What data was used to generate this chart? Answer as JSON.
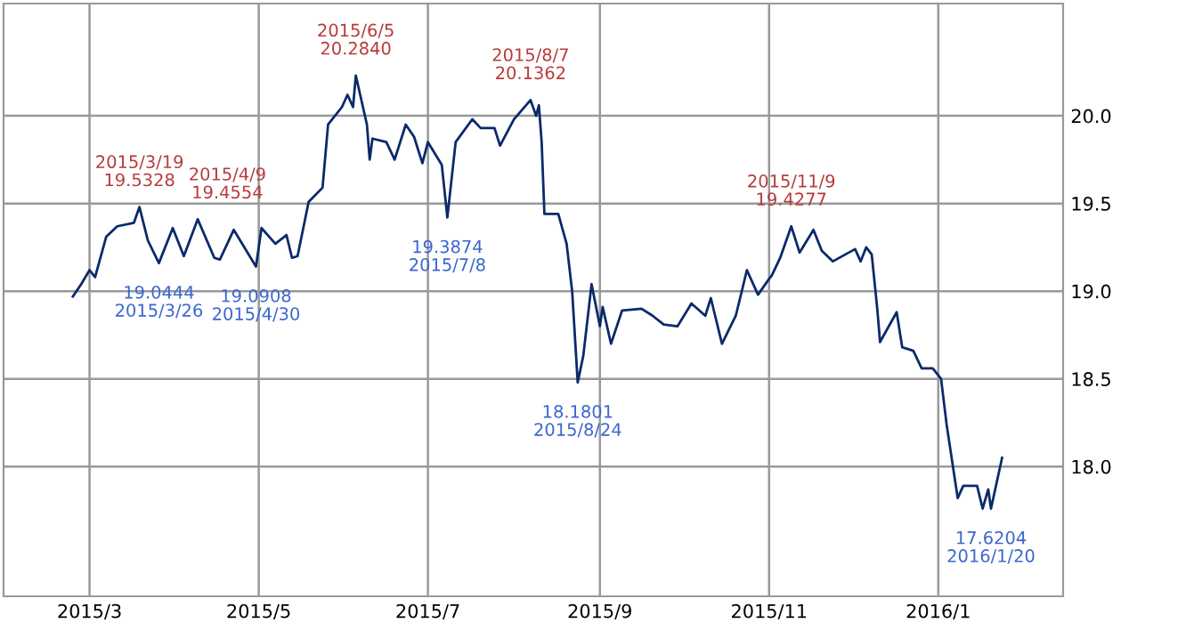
{
  "chart_data": {
    "type": "line",
    "x": [
      "2015-02-23",
      "2015-02-26",
      "2015-03-01",
      "2015-03-03",
      "2015-03-07",
      "2015-03-11",
      "2015-03-17",
      "2015-03-19",
      "2015-03-22",
      "2015-03-26",
      "2015-03-31",
      "2015-04-04",
      "2015-04-09",
      "2015-04-15",
      "2015-04-17",
      "2015-04-22",
      "2015-04-30",
      "2015-05-02",
      "2015-05-07",
      "2015-05-11",
      "2015-05-13",
      "2015-05-15",
      "2015-05-19",
      "2015-05-24",
      "2015-05-26",
      "2015-05-31",
      "2015-06-02",
      "2015-06-04",
      "2015-06-05",
      "2015-06-09",
      "2015-06-10",
      "2015-06-11",
      "2015-06-16",
      "2015-06-19",
      "2015-06-23",
      "2015-06-26",
      "2015-06-29",
      "2015-07-01",
      "2015-07-06",
      "2015-07-08",
      "2015-07-11",
      "2015-07-17",
      "2015-07-20",
      "2015-07-25",
      "2015-07-27",
      "2015-08-01",
      "2015-08-07",
      "2015-08-09",
      "2015-08-10",
      "2015-08-11",
      "2015-08-12",
      "2015-08-17",
      "2015-08-20",
      "2015-08-22",
      "2015-08-24",
      "2015-08-26",
      "2015-08-29",
      "2015-09-01",
      "2015-09-02",
      "2015-09-05",
      "2015-09-09",
      "2015-09-16",
      "2015-09-20",
      "2015-09-24",
      "2015-09-29",
      "2015-10-04",
      "2015-10-09",
      "2015-10-11",
      "2015-10-15",
      "2015-10-20",
      "2015-10-24",
      "2015-10-28",
      "2015-11-01",
      "2015-11-02",
      "2015-11-05",
      "2015-11-09",
      "2015-11-12",
      "2015-11-17",
      "2015-11-20",
      "2015-11-24",
      "2015-12-02",
      "2015-12-04",
      "2015-12-06",
      "2015-12-08",
      "2015-12-10",
      "2015-12-11",
      "2015-12-17",
      "2015-12-19",
      "2015-12-23",
      "2015-12-26",
      "2015-12-30",
      "2016-01-02",
      "2016-01-04",
      "2016-01-08",
      "2016-01-10",
      "2016-01-15",
      "2016-01-17",
      "2016-01-19",
      "2016-01-20",
      "2016-01-24"
    ],
    "series": [
      {
        "color": "#0a2a6a",
        "values": [
          18.97,
          19.04,
          19.12,
          19.08,
          19.31,
          19.37,
          19.39,
          19.48,
          19.29,
          19.16,
          19.36,
          19.2,
          19.41,
          19.19,
          19.18,
          19.35,
          19.14,
          19.36,
          19.27,
          19.32,
          19.19,
          19.2,
          19.51,
          19.59,
          19.95,
          20.05,
          20.12,
          20.05,
          20.23,
          19.95,
          19.75,
          19.87,
          19.85,
          19.75,
          19.95,
          19.88,
          19.73,
          19.85,
          19.72,
          19.42,
          19.85,
          19.98,
          19.93,
          19.93,
          19.83,
          19.98,
          20.09,
          20.0,
          20.06,
          19.85,
          19.44,
          19.44,
          19.27,
          19.0,
          18.48,
          18.63,
          19.04,
          18.8,
          18.91,
          18.7,
          18.89,
          18.9,
          18.86,
          18.81,
          18.8,
          18.93,
          18.86,
          18.96,
          18.7,
          18.86,
          19.12,
          18.98,
          19.07,
          19.09,
          19.19,
          19.37,
          19.22,
          19.35,
          19.23,
          19.17,
          19.24,
          19.17,
          19.25,
          19.21,
          18.9,
          18.71,
          18.88,
          18.68,
          18.66,
          18.56,
          18.56,
          18.5,
          18.24,
          17.82,
          17.89,
          17.89,
          17.76,
          17.87,
          17.76,
          18.05
        ]
      }
    ],
    "xlim": [
      "2015-01-29",
      "2016-02-15"
    ],
    "xticks": [
      {
        "value": "2015-03-01",
        "label": "2015/3"
      },
      {
        "value": "2015-05-01",
        "label": "2015/5"
      },
      {
        "value": "2015-07-01",
        "label": "2015/7"
      },
      {
        "value": "2015-09-01",
        "label": "2015/9"
      },
      {
        "value": "2015-11-01",
        "label": "2015/11"
      },
      {
        "value": "2016-01-01",
        "label": "2016/1"
      }
    ],
    "ylim": [
      17.26,
      20.64
    ],
    "yticks": [
      {
        "value": 18,
        "label": "18.0"
      },
      18.5,
      {
        "value": 19,
        "label": "19.0"
      },
      19.5,
      {
        "value": 20,
        "label": "20.0"
      }
    ],
    "grid": true,
    "annotations": [
      {
        "text": "2015/3/19\n19.5328",
        "x": "2015-03-19",
        "y": 19.48
      },
      {
        "text": "2015/4/9\n19.4554",
        "x": "2015-04-09",
        "y": 19.41
      },
      {
        "text": "2015/6/5\n20.2840",
        "x": "2015-06-05",
        "y": 20.23
      },
      {
        "text": "2015/8/7\n20.1362",
        "x": "2015-08-07",
        "y": 20.09
      },
      {
        "text": "2015/11/9\n19.4277",
        "x": "2015-11-09",
        "y": 19.37
      },
      {
        "text": "19.0444\n2015/3/26",
        "x": "2015-03-26",
        "y": 19.16
      },
      {
        "text": "19.0908\n2015/4/30",
        "x": "2015-04-30",
        "y": 19.14
      },
      {
        "text": "19.3874\n2015/7/8",
        "x": "2015-07-08",
        "y": 19.42
      },
      {
        "text": "18.1801\n2015/8/24",
        "x": "2015-08-24",
        "y": 18.48
      },
      {
        "text": "17.6204\n2016/1/20",
        "x": "2016-01-20",
        "y": 17.76
      }
    ]
  }
}
